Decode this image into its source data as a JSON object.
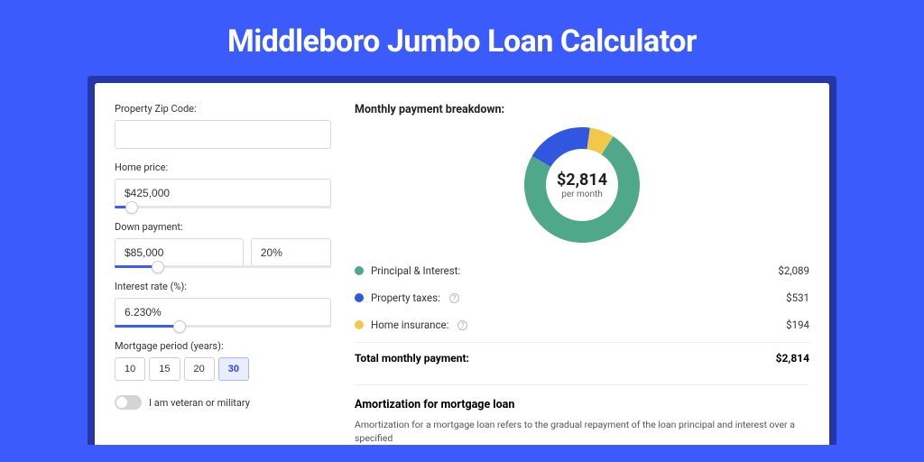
{
  "title": "Middleboro Jumbo Loan Calculator",
  "colors": {
    "page_bg": "#3b5bfd",
    "shadow_bg": "#2436a8",
    "slider_fill": "#3b5bfd"
  },
  "form": {
    "zip": {
      "label": "Property Zip Code:",
      "value": ""
    },
    "home": {
      "label": "Home price:",
      "value": "$425,000",
      "slider_pct": 8
    },
    "down": {
      "label": "Down payment:",
      "value": "$85,000",
      "pct_value": "20%",
      "slider_pct": 20
    },
    "rate": {
      "label": "Interest rate (%):",
      "value": "6.230%",
      "slider_pct": 30
    },
    "period": {
      "label": "Mortgage period (years):",
      "options": [
        "10",
        "15",
        "20",
        "30"
      ],
      "selected_index": 3
    },
    "veteran": {
      "label": "I am veteran or military",
      "checked": false
    }
  },
  "breakdown": {
    "title": "Monthly payment breakdown:",
    "donut": {
      "type": "donut",
      "center_value": "$2,814",
      "center_sub": "per month",
      "segments": [
        {
          "name": "Principal & Interest",
          "value": 2089,
          "color": "#4fa88a"
        },
        {
          "name": "Property taxes",
          "value": 531,
          "color": "#3156e0"
        },
        {
          "name": "Home insurance",
          "value": 194,
          "color": "#f2c84b"
        }
      ],
      "inner_radius": 40,
      "outer_radius": 64,
      "background": "#ffffff"
    },
    "rows": [
      {
        "swatch": "#4fa88a",
        "label": "Principal & Interest:",
        "info": false,
        "value": "$2,089"
      },
      {
        "swatch": "#3156e0",
        "label": "Property taxes:",
        "info": true,
        "value": "$531"
      },
      {
        "swatch": "#f2c84b",
        "label": "Home insurance:",
        "info": true,
        "value": "$194"
      }
    ],
    "total_label": "Total monthly payment:",
    "total_value": "$2,814"
  },
  "amortization": {
    "title": "Amortization for mortgage loan",
    "text": "Amortization for a mortgage loan refers to the gradual repayment of the loan principal and interest over a specified"
  }
}
